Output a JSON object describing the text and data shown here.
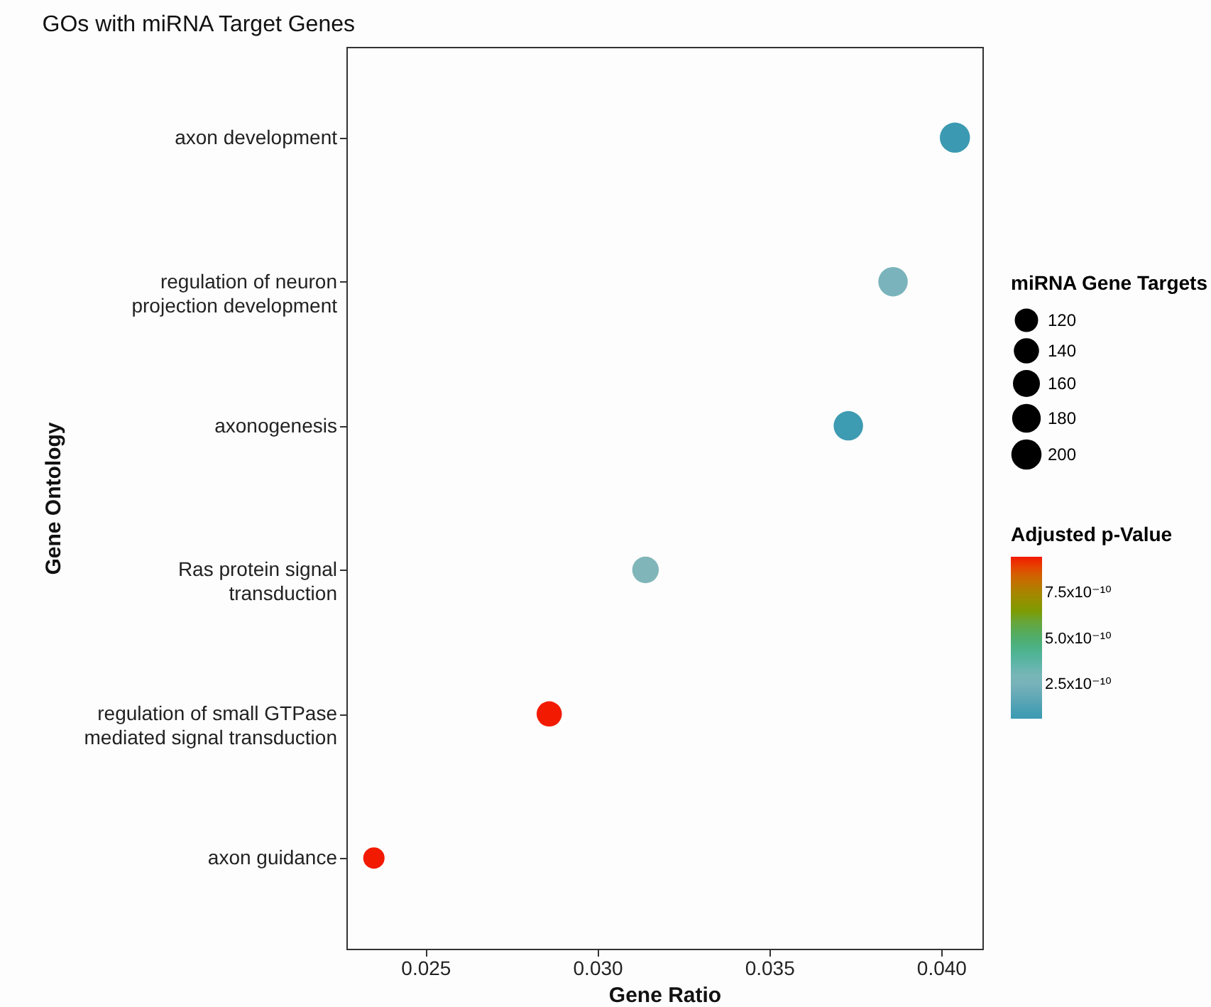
{
  "chart_data": {
    "type": "bubble",
    "orientation": "horizontal",
    "title": "GOs with miRNA Target Genes",
    "xlabel": "Gene Ratio",
    "ylabel": "Gene Ontology",
    "categories": [
      "axon development",
      "regulation of neuron\nprojection development",
      "axonogenesis",
      "Ras protein signal\ntransduction",
      "regulation of small GTPase\nmediated signal transduction",
      "axon guidance"
    ],
    "values": [
      0.0404,
      0.0386,
      0.0373,
      0.0314,
      0.0286,
      0.0235
    ],
    "sizes": [
      200,
      190,
      190,
      155,
      140,
      100
    ],
    "cvalues": [
      7e-11,
      2.6e-10,
      8e-11,
      2.8e-10,
      9.3e-10,
      9.5e-10
    ],
    "legend_title": "miRNA Gene Targets",
    "size_legend": [
      120,
      140,
      160,
      180,
      200
    ],
    "clabel": "Adjusted p-Value",
    "clim": [
      6.3e-11,
      9.5e-10
    ],
    "cticks": [
      {
        "value": 2.5e-10,
        "label": "2.5x10⁻¹⁰"
      },
      {
        "value": 5e-10,
        "label": "5.0x10⁻¹⁰"
      },
      {
        "value": 7.5e-10,
        "label": "7.5x10⁻¹⁰"
      }
    ],
    "colors": [
      "#3b9ab2",
      "#7ab3bb",
      "#3d9bb2",
      "#80b6ba",
      "#f21a00",
      "#f21a00"
    ],
    "xlim": [
      0.0227,
      0.0412
    ],
    "xticks": [
      {
        "value": 0.025,
        "label": "0.025"
      },
      {
        "value": 0.03,
        "label": "0.030"
      },
      {
        "value": 0.035,
        "label": "0.035"
      },
      {
        "value": 0.04,
        "label": "0.040"
      }
    ],
    "grid": false
  }
}
